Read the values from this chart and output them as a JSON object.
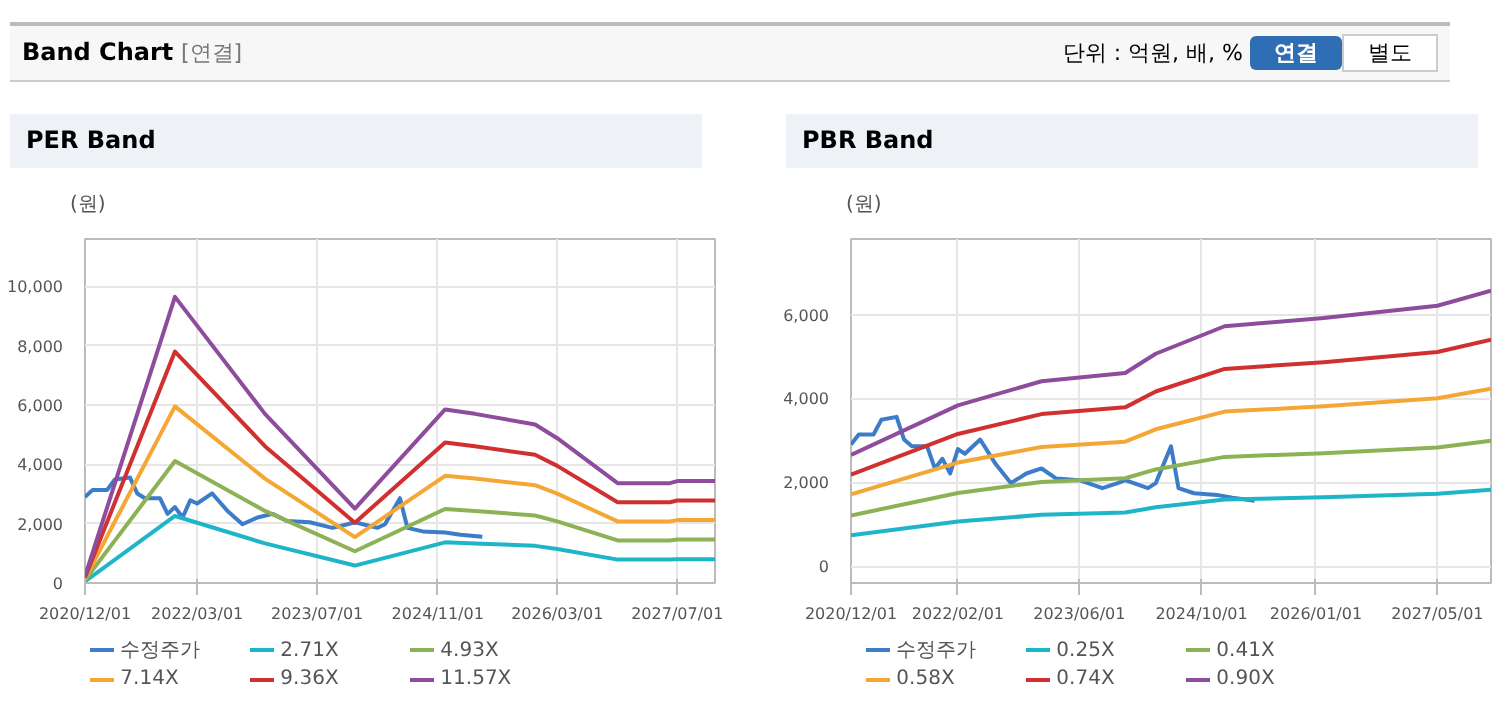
{
  "chart_data": [
    {
      "type": "line",
      "title": "PER Band",
      "ylabel": "(원)",
      "annotations": [
        "Band Chart",
        "[연결]",
        "단위 : 억원, 배, %",
        "연결",
        "별도"
      ],
      "xlim": [
        "2020-12",
        "2027-12"
      ],
      "ylim": [
        0,
        11600
      ],
      "xticks": [
        {
          "value": "2020-12",
          "label": "2020/12/01"
        },
        {
          "value": "2022-03",
          "label": "2022/03/01"
        },
        {
          "value": "2023-07",
          "label": "2023/07/01"
        },
        {
          "value": "2024-11",
          "label": "2024/11/01"
        },
        {
          "value": "2026-03",
          "label": "2026/03/01"
        },
        {
          "value": "2027-07",
          "label": "2027/07/01"
        }
      ],
      "yticks": [
        0,
        {
          "value": 2000,
          "label": "2,000"
        },
        {
          "value": 4000,
          "label": "4,000"
        },
        {
          "value": 6000,
          "label": "6,000"
        },
        {
          "value": 8000,
          "label": "8,000"
        },
        {
          "value": 10000,
          "label": "10,000"
        }
      ],
      "grid": true,
      "legend": "bottom",
      "line_style": "solid",
      "series": [
        {
          "name": "수정주가",
          "color": "#3d7cc9",
          "x": [
            "2020-12",
            "2021-01",
            "2021-03",
            "2021-04",
            "2021-06",
            "2021-07",
            "2021-08",
            "2021-10",
            "2021-11",
            "2021-12",
            "2022-01",
            "2022-02",
            "2022-03",
            "2022-05",
            "2022-07",
            "2022-09",
            "2022-11",
            "2023-01",
            "2023-03",
            "2023-06",
            "2023-09",
            "2023-11",
            "2023-12",
            "2024-03",
            "2024-04",
            "2024-06",
            "2024-07",
            "2024-09",
            "2024-12",
            "2025-02",
            "2025-05"
          ],
          "values": [
            2900,
            3140,
            3140,
            3490,
            3560,
            3020,
            2860,
            2860,
            2330,
            2560,
            2210,
            2790,
            2680,
            3020,
            2440,
            1980,
            2210,
            2330,
            2090,
            2050,
            1860,
            1980,
            2050,
            1860,
            1980,
            2860,
            1860,
            1740,
            1700,
            1630,
            1560
          ]
        },
        {
          "name": "2.71X",
          "color": "#1fb5c8",
          "x": [
            "2020-12",
            "2021-12",
            "2022-12",
            "2023-12",
            "2024-12",
            "2025-04",
            "2025-12",
            "2026-03",
            "2026-11",
            "2027-06",
            "2027-07",
            "2027-12"
          ],
          "values": [
            54,
            2260,
            1336,
            588,
            1371,
            1336,
            1252,
            1144,
            789,
            789,
            805,
            805
          ]
        },
        {
          "name": "4.93X",
          "color": "#8db255",
          "x": [
            "2020-12",
            "2021-12",
            "2022-12",
            "2023-12",
            "2024-12",
            "2025-04",
            "2025-12",
            "2026-03",
            "2026-11",
            "2027-06",
            "2027-07",
            "2027-12"
          ],
          "values": [
            99,
            4112,
            2430,
            1070,
            2495,
            2430,
            2278,
            2080,
            1435,
            1435,
            1464,
            1464
          ]
        },
        {
          "name": "7.14X",
          "color": "#f5a735",
          "x": [
            "2020-12",
            "2021-12",
            "2022-12",
            "2023-12",
            "2024-12",
            "2025-04",
            "2025-12",
            "2026-03",
            "2026-11",
            "2027-06",
            "2027-07",
            "2027-12"
          ],
          "values": [
            143,
            5955,
            3520,
            1549,
            3613,
            3520,
            3299,
            3013,
            2078,
            2078,
            2121,
            2121
          ]
        },
        {
          "name": "9.36X",
          "color": "#d03030",
          "x": [
            "2020-12",
            "2021-12",
            "2022-12",
            "2023-12",
            "2024-12",
            "2025-04",
            "2025-12",
            "2026-03",
            "2026-11",
            "2027-06",
            "2027-07",
            "2027-12"
          ],
          "values": [
            187,
            7806,
            4614,
            2031,
            4736,
            4614,
            4324,
            3950,
            2724,
            2724,
            2780,
            2780
          ]
        },
        {
          "name": "11.57X",
          "color": "#8e4c9c",
          "x": [
            "2020-12",
            "2021-12",
            "2022-12",
            "2023-12",
            "2024-12",
            "2025-04",
            "2025-12",
            "2026-03",
            "2026-11",
            "2027-06",
            "2027-07",
            "2027-12"
          ],
          "values": [
            231,
            9649,
            5704,
            2511,
            5854,
            5704,
            5345,
            4883,
            3367,
            3367,
            3436,
            3436
          ]
        }
      ]
    },
    {
      "type": "line",
      "title": "PBR Band",
      "ylabel": "(원)",
      "xlim": [
        "2020-12",
        "2027-12"
      ],
      "ylim": [
        -400,
        7800
      ],
      "xticks": [
        {
          "value": "2020-12",
          "label": "2020/12/01"
        },
        {
          "value": "2022-02",
          "label": "2022/02/01"
        },
        {
          "value": "2023-06",
          "label": "2023/06/01"
        },
        {
          "value": "2024-10",
          "label": "2024/10/01"
        },
        {
          "value": "2026-01",
          "label": "2026/01/01"
        },
        {
          "value": "2027-05",
          "label": "2027/05/01"
        }
      ],
      "yticks": [
        0,
        {
          "value": 2000,
          "label": "2,000"
        },
        {
          "value": 4000,
          "label": "4,000"
        },
        {
          "value": 6000,
          "label": "6,000"
        }
      ],
      "grid": true,
      "legend": "bottom",
      "line_style": "solid",
      "series": [
        {
          "name": "수정주가",
          "color": "#3d7cc9",
          "x": [
            "2020-12",
            "2021-01",
            "2021-03",
            "2021-04",
            "2021-06",
            "2021-07",
            "2021-08",
            "2021-10",
            "2021-11",
            "2021-12",
            "2022-01",
            "2022-02",
            "2022-03",
            "2022-05",
            "2022-07",
            "2022-09",
            "2022-11",
            "2023-01",
            "2023-03",
            "2023-06",
            "2023-09",
            "2023-11",
            "2023-12",
            "2024-03",
            "2024-04",
            "2024-06",
            "2024-07",
            "2024-09",
            "2024-12",
            "2025-02",
            "2025-05"
          ],
          "values": [
            2900,
            3140,
            3140,
            3490,
            3560,
            3020,
            2860,
            2860,
            2330,
            2560,
            2210,
            2790,
            2680,
            3020,
            2440,
            1980,
            2210,
            2330,
            2090,
            2050,
            1860,
            1980,
            2050,
            1860,
            1980,
            2860,
            1860,
            1740,
            1700,
            1630,
            1560
          ]
        },
        {
          "name": "0.25X",
          "color": "#1fb5c8",
          "x": [
            "2020-12",
            "2022-02",
            "2023-01",
            "2023-12",
            "2024-04",
            "2025-01",
            "2026-02",
            "2027-05",
            "2027-12"
          ],
          "values": [
            738,
            1065,
            1225,
            1279,
            1407,
            1589,
            1643,
            1725,
            1825
          ]
        },
        {
          "name": "0.41X",
          "color": "#8db255",
          "x": [
            "2020-12",
            "2022-02",
            "2023-01",
            "2023-12",
            "2024-04",
            "2025-01",
            "2026-02",
            "2027-05",
            "2027-12"
          ],
          "values": [
            1210,
            1747,
            2009,
            2098,
            2307,
            2606,
            2695,
            2829,
            2993
          ]
        },
        {
          "name": "0.58X",
          "color": "#f5a735",
          "x": [
            "2020-12",
            "2022-02",
            "2023-01",
            "2023-12",
            "2024-04",
            "2025-01",
            "2026-02",
            "2027-05",
            "2027-12"
          ],
          "values": [
            1711,
            2471,
            2842,
            2968,
            3264,
            3686,
            3812,
            4002,
            4234
          ]
        },
        {
          "name": "0.74X",
          "color": "#d03030",
          "x": [
            "2020-12",
            "2022-02",
            "2023-01",
            "2023-12",
            "2024-04",
            "2025-01",
            "2026-02",
            "2027-05",
            "2027-12"
          ],
          "values": [
            2183,
            3152,
            3626,
            3787,
            4165,
            4703,
            4863,
            5106,
            5402
          ]
        },
        {
          "name": "0.90X",
          "color": "#8e4c9c",
          "x": [
            "2020-12",
            "2022-02",
            "2023-01",
            "2023-12",
            "2024-04",
            "2025-01",
            "2026-02",
            "2027-05",
            "2027-12"
          ],
          "values": [
            2655,
            3834,
            4410,
            4605,
            5065,
            5720,
            5915,
            6210,
            6570
          ]
        }
      ]
    }
  ]
}
